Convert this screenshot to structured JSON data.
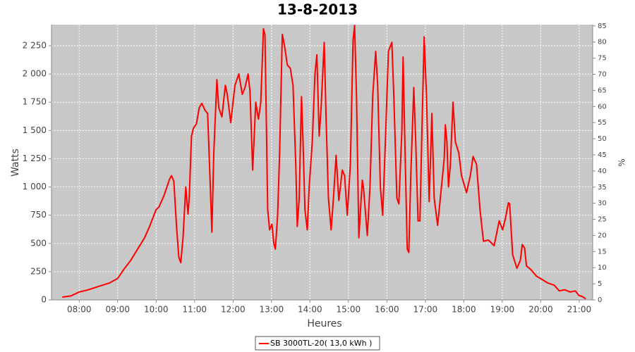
{
  "chart_data": {
    "type": "line",
    "title": "13-8-2013",
    "xlabel": "Heures",
    "ylabel": "Watts",
    "y2label": "%",
    "x": [
      7.56,
      7.78,
      8.0,
      8.24,
      8.51,
      8.79,
      9.0,
      9.16,
      9.34,
      9.52,
      9.7,
      9.83,
      10.0,
      10.07,
      10.2,
      10.35,
      10.4,
      10.46,
      10.53,
      10.59,
      10.64,
      10.7,
      10.77,
      10.83,
      10.86,
      10.92,
      10.97,
      11.05,
      11.12,
      11.19,
      11.27,
      11.34,
      11.41,
      11.45,
      11.5,
      11.58,
      11.63,
      11.71,
      11.8,
      11.85,
      11.94,
      12.05,
      12.15,
      12.24,
      12.31,
      12.39,
      12.44,
      12.51,
      12.59,
      12.66,
      12.72,
      12.79,
      12.83,
      12.86,
      12.9,
      12.95,
      13.01,
      13.06,
      13.1,
      13.16,
      13.21,
      13.28,
      13.34,
      13.41,
      13.49,
      13.56,
      13.63,
      13.67,
      13.72,
      13.78,
      13.82,
      13.87,
      13.93,
      13.98,
      14.06,
      14.13,
      14.18,
      14.24,
      14.29,
      14.37,
      14.42,
      14.48,
      14.55,
      14.61,
      14.68,
      14.75,
      14.84,
      14.9,
      14.97,
      15.05,
      15.12,
      15.16,
      15.21,
      15.27,
      15.36,
      15.39,
      15.49,
      15.56,
      15.63,
      15.71,
      15.76,
      15.83,
      15.89,
      15.96,
      16.04,
      16.13,
      16.18,
      16.26,
      16.31,
      16.39,
      16.42,
      16.48,
      16.53,
      16.57,
      16.62,
      16.7,
      16.75,
      16.81,
      16.86,
      16.91,
      16.97,
      17.03,
      17.1,
      17.17,
      17.23,
      17.32,
      17.39,
      17.49,
      17.52,
      17.56,
      17.6,
      17.65,
      17.72,
      17.78,
      17.87,
      17.94,
      18.07,
      18.17,
      18.24,
      18.33,
      18.42,
      18.51,
      18.64,
      18.79,
      18.92,
      19.01,
      19.08,
      19.16,
      19.19,
      19.27,
      19.38,
      19.47,
      19.52,
      19.58,
      19.63,
      19.74,
      19.89,
      20.04,
      20.18,
      20.35,
      20.48,
      20.62,
      20.77,
      20.9,
      20.99,
      21.08,
      21.17
    ],
    "series": [
      {
        "name": "SB 3000TL-20( 13,0 kWh )",
        "color": "#ff0000",
        "values": [
          25,
          35,
          70,
          90,
          120,
          150,
          190,
          270,
          350,
          450,
          550,
          650,
          800,
          820,
          920,
          1070,
          1100,
          1050,
          650,
          380,
          330,
          550,
          1000,
          760,
          900,
          1450,
          1520,
          1560,
          1700,
          1740,
          1680,
          1650,
          1000,
          600,
          1300,
          1950,
          1700,
          1620,
          1900,
          1820,
          1570,
          1900,
          2000,
          1820,
          1880,
          2000,
          1850,
          1150,
          1750,
          1600,
          1750,
          2400,
          2350,
          1700,
          800,
          620,
          670,
          500,
          450,
          750,
          1300,
          2350,
          2250,
          2080,
          2050,
          1900,
          1200,
          650,
          900,
          1800,
          1400,
          800,
          620,
          1000,
          1400,
          2000,
          2170,
          1450,
          1700,
          2280,
          1600,
          900,
          620,
          900,
          1280,
          880,
          1150,
          1100,
          750,
          1200,
          2300,
          2430,
          1800,
          550,
          1060,
          1000,
          570,
          1000,
          1800,
          2200,
          1900,
          1000,
          750,
          1400,
          2200,
          2280,
          1800,
          900,
          850,
          1500,
          2150,
          1200,
          450,
          420,
          1100,
          1880,
          1400,
          700,
          700,
          1500,
          2330,
          1800,
          870,
          1650,
          900,
          660,
          900,
          1250,
          1550,
          1400,
          1000,
          1200,
          1750,
          1400,
          1300,
          1100,
          950,
          1100,
          1270,
          1200,
          800,
          520,
          530,
          480,
          700,
          620,
          720,
          860,
          850,
          400,
          280,
          350,
          490,
          460,
          300,
          270,
          210,
          180,
          150,
          130,
          80,
          90,
          70,
          80,
          40,
          30,
          10
        ]
      }
    ],
    "xlim": [
      7.28,
      21.35
    ],
    "xticks": [
      {
        "value": 8,
        "label": "08:00"
      },
      {
        "value": 9,
        "label": "09:00"
      },
      {
        "value": 10,
        "label": "10:00"
      },
      {
        "value": 11,
        "label": "11:00"
      },
      {
        "value": 12,
        "label": "12:00"
      },
      {
        "value": 13,
        "label": "13:00"
      },
      {
        "value": 14,
        "label": "14:00"
      },
      {
        "value": 15,
        "label": "15:00"
      },
      {
        "value": 16,
        "label": "16:00"
      },
      {
        "value": 17,
        "label": "17:00"
      },
      {
        "value": 18,
        "label": "18:00"
      },
      {
        "value": 19,
        "label": "19:00"
      },
      {
        "value": 20,
        "label": "20:00"
      },
      {
        "value": 21,
        "label": "21:00"
      }
    ],
    "ylim": [
      0,
      2437
    ],
    "yticks": [
      0,
      250,
      500,
      750,
      {
        "value": 1000,
        "label": "1 000"
      },
      {
        "value": 1250,
        "label": "1 250"
      },
      {
        "value": 1500,
        "label": "1 500"
      },
      {
        "value": 1750,
        "label": "1 750"
      },
      {
        "value": 2000,
        "label": "2 000"
      },
      {
        "value": 2250,
        "label": "2 250"
      }
    ],
    "y2lim": [
      0,
      85.4
    ],
    "y2ticks": [
      0,
      5,
      10,
      15,
      20,
      25,
      30,
      35,
      40,
      45,
      50,
      55,
      60,
      65,
      70,
      75,
      80,
      85
    ],
    "grid": true,
    "legend": "bottom"
  }
}
